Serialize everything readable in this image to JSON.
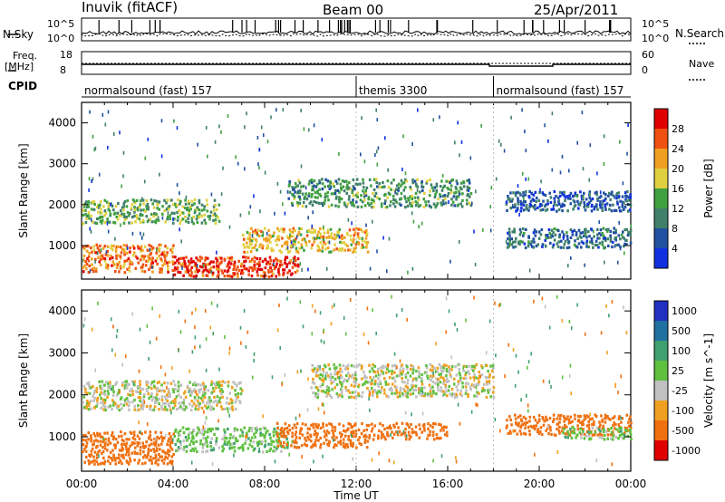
{
  "header": {
    "station": "Inuvik (fitACF)",
    "beam": "Beam 00",
    "date": "25/Apr/2011"
  },
  "noise_panel": {
    "left_label": "N.Sky",
    "right_label": "N.Search",
    "left_ticks": [
      "10^5",
      "10^0"
    ],
    "right_ticks": [
      "10^5",
      "10^0"
    ]
  },
  "freq_panel": {
    "left_label_1": "Freq.",
    "left_label_2": "[MHz]",
    "right_label": "Nave",
    "left_ticks": [
      "18",
      "8"
    ],
    "right_ticks": [
      "60",
      "0"
    ]
  },
  "cpid": {
    "label": "CPID",
    "segments": [
      {
        "start_h": 0,
        "name": "normalsound (fast) 157"
      },
      {
        "start_h": 12,
        "name": "themis 3300"
      },
      {
        "start_h": 18,
        "name": "normalsound (fast) 157"
      }
    ]
  },
  "colors": {
    "power": [
      "#1030e0",
      "#2050a0",
      "#40806a",
      "#40a040",
      "#e0d040",
      "#f0a020",
      "#f05010",
      "#e00000"
    ],
    "velocity": [
      "#2030c0",
      "#2070a0",
      "#40a070",
      "#60c040",
      "#c0c0c0",
      "#f0a020",
      "#f07010",
      "#e00000"
    ],
    "ground_scatter": "#b8b8b8"
  },
  "chart_data": [
    {
      "type": "heatmap",
      "title": "",
      "xlabel": "Time UT",
      "ylabel": "Slant Range [km]",
      "xlim": [
        0,
        24
      ],
      "ylim": [
        180,
        4500
      ],
      "x_ticks": [
        "00:00",
        "04:00",
        "08:00",
        "12:00",
        "16:00",
        "20:00",
        "00:00"
      ],
      "y_ticks": [
        "1000",
        "2000",
        "3000",
        "4000"
      ],
      "colorbar": {
        "label": "Power [dB]",
        "ticks": [
          "4",
          "8",
          "12",
          "16",
          "20",
          "24",
          "28"
        ],
        "range": [
          0,
          32
        ]
      },
      "regions": [
        {
          "t0": 0.0,
          "t1": 6.0,
          "r0": 1500,
          "r1": 2100,
          "value": 14
        },
        {
          "t0": 0.0,
          "t1": 4.0,
          "r0": 300,
          "r1": 1000,
          "value": 24
        },
        {
          "t0": 4.0,
          "t1": 9.5,
          "r0": 200,
          "r1": 700,
          "value": 28
        },
        {
          "t0": 7.0,
          "t1": 12.5,
          "r0": 800,
          "r1": 1400,
          "value": 20
        },
        {
          "t0": 9.0,
          "t1": 17.0,
          "r0": 1900,
          "r1": 2600,
          "value": 12
        },
        {
          "t0": 18.5,
          "t1": 24.0,
          "r0": 900,
          "r1": 1400,
          "value": 8
        },
        {
          "t0": 18.5,
          "t1": 24.0,
          "r0": 1800,
          "r1": 2300,
          "value": 6
        }
      ]
    },
    {
      "type": "heatmap",
      "title": "",
      "xlabel": "Time UT",
      "ylabel": "Slant Range [km]",
      "xlim": [
        0,
        24
      ],
      "ylim": [
        180,
        4500
      ],
      "x_ticks": [
        "00:00",
        "04:00",
        "08:00",
        "12:00",
        "16:00",
        "20:00",
        "00:00"
      ],
      "y_ticks": [
        "1000",
        "2000",
        "3000",
        "4000"
      ],
      "colorbar": {
        "label": "Velocity [m s^-1]",
        "ticks": [
          "1000",
          "500",
          "100",
          "25",
          "-25",
          "-100",
          "-500",
          "-1000"
        ],
        "range": [
          -1000,
          1000
        ]
      },
      "regions": [
        {
          "t0": 0.0,
          "t1": 7.0,
          "r0": 1600,
          "r1": 2300,
          "value": 0
        },
        {
          "t0": 0.0,
          "t1": 4.0,
          "r0": 300,
          "r1": 1100,
          "value": -300
        },
        {
          "t0": 4.0,
          "t1": 9.0,
          "r0": 600,
          "r1": 1200,
          "value": 60
        },
        {
          "t0": 8.5,
          "t1": 12.5,
          "r0": 700,
          "r1": 1300,
          "value": -300
        },
        {
          "t0": 10.0,
          "t1": 18.0,
          "r0": 1900,
          "r1": 2700,
          "value": 0
        },
        {
          "t0": 12.5,
          "t1": 16.0,
          "r0": 900,
          "r1": 1300,
          "value": -300
        },
        {
          "t0": 18.5,
          "t1": 24.0,
          "r0": 1000,
          "r1": 1500,
          "value": -400
        },
        {
          "t0": 21.0,
          "t1": 24.0,
          "r0": 900,
          "r1": 1200,
          "value": 60
        }
      ]
    }
  ]
}
